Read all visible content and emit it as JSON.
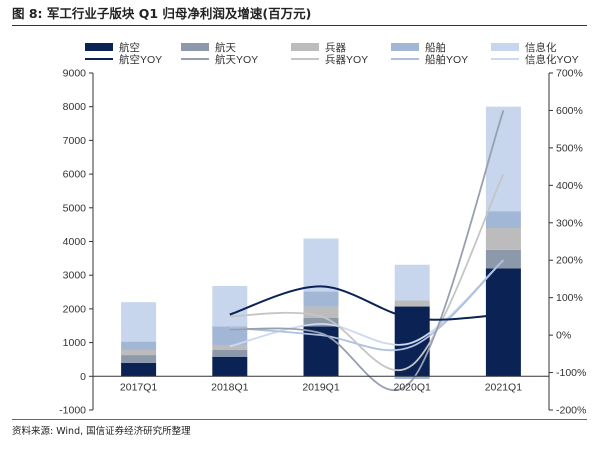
{
  "header": {
    "title": "图 8: 军工行业子版块 Q1 归母净利润及增速(百万元)"
  },
  "footer": {
    "source": "资料来源: Wind, 国信证券经济研究所整理"
  },
  "colors": {
    "aviation": "#0b2354",
    "aerospace": "#8c99ab",
    "ordnance": "#bcbcbc",
    "shipbuilding": "#a2b6d6",
    "informatization": "#c7d6ec",
    "aviation_yoy": "#0b2354",
    "aerospace_yoy": "#98a0b0",
    "ordnance_yoy": "#c5c5c5",
    "shipbuilding_yoy": "#adc0df",
    "informatization_yoy": "#ccd9ee"
  },
  "chart_data": {
    "type": "bar",
    "stacked": true,
    "categories": [
      "2017Q1",
      "2018Q1",
      "2019Q1",
      "2020Q1",
      "2021Q1"
    ],
    "series": [
      {
        "name": "航空",
        "key": "aviation",
        "values": [
          400,
          580,
          1480,
          2070,
          3200
        ]
      },
      {
        "name": "航天",
        "key": "aerospace",
        "values": [
          230,
          200,
          260,
          0,
          550
        ]
      },
      {
        "name": "兵器",
        "key": "ordnance",
        "values": [
          150,
          150,
          330,
          180,
          650
        ]
      },
      {
        "name": "船舶",
        "key": "shipbuilding",
        "values": [
          250,
          550,
          450,
          -80,
          500
        ]
      },
      {
        "name": "信息化",
        "key": "informatization",
        "values": [
          1170,
          1200,
          1570,
          1060,
          3100
        ]
      }
    ],
    "line_series": [
      {
        "name": "航空YOY",
        "key": "aviation_yoy",
        "values": [
          null,
          55,
          130,
          45,
          55
        ]
      },
      {
        "name": "航天YOY",
        "key": "aerospace_yoy",
        "values": [
          null,
          15,
          5,
          -120,
          600
        ]
      },
      {
        "name": "兵器YOY",
        "key": "ordnance_yoy",
        "values": [
          null,
          50,
          50,
          -80,
          430
        ]
      },
      {
        "name": "船舶YOY",
        "key": "shipbuilding_yoy",
        "values": [
          null,
          20,
          0,
          -30,
          200
        ]
      },
      {
        "name": "信息化YOY",
        "key": "informatization_yoy",
        "values": [
          null,
          -30,
          30,
          -20,
          200
        ]
      }
    ],
    "y_left": {
      "min": -1000,
      "max": 9000,
      "step": 1000,
      "ticks": [
        "-1000",
        "0",
        "1000",
        "2000",
        "3000",
        "4000",
        "5000",
        "6000",
        "7000",
        "8000",
        "9000"
      ]
    },
    "y_right": {
      "min": -200,
      "max": 700,
      "step": 100,
      "ticks": [
        "-200%",
        "-100%",
        "0%",
        "100%",
        "200%",
        "300%",
        "400%",
        "500%",
        "600%",
        "700%"
      ]
    },
    "grid": false,
    "legend_position": "top"
  }
}
